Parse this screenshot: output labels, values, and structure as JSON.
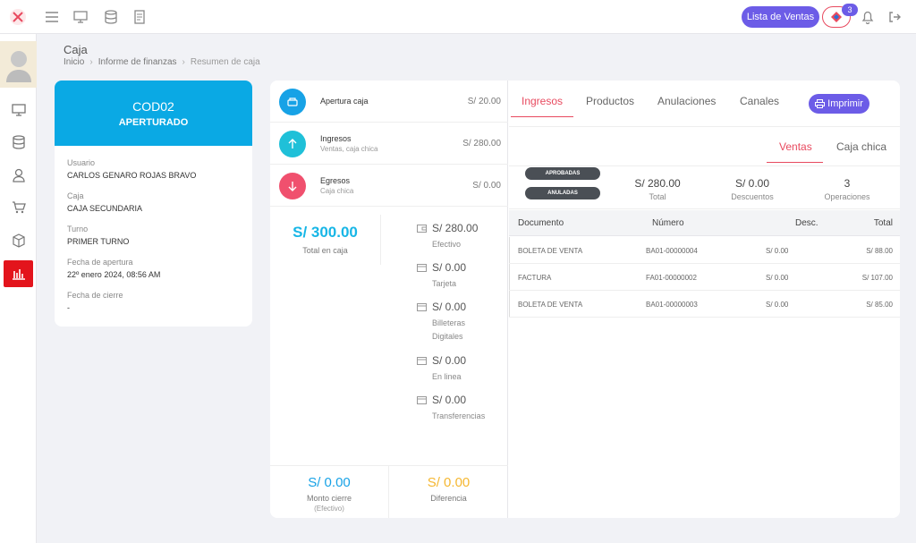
{
  "topbar": {
    "lista_label": "Lista de Ventas",
    "cart_count": "3"
  },
  "header": {
    "title": "Caja",
    "breadcrumb": [
      "Inicio",
      "Informe de finanzas",
      "Resumen de caja"
    ]
  },
  "caja_card": {
    "code": "COD02",
    "status": "APERTURADO",
    "fields": [
      {
        "label": "Usuario",
        "value": "CARLOS GENARO ROJAS BRAVO"
      },
      {
        "label": "Caja",
        "value": "CAJA SECUNDARIA"
      },
      {
        "label": "Turno",
        "value": "PRIMER TURNO"
      },
      {
        "label": "Fecha de apertura",
        "value": "22º enero 2024, 08:56 AM"
      },
      {
        "label": "Fecha de cierre",
        "value": "-"
      }
    ]
  },
  "movements": [
    {
      "title": "Apertura caja",
      "subtitle": "",
      "amount": "S/ 20.00",
      "color": "#17a2e6",
      "icon": "cash-register-icon"
    },
    {
      "title": "Ingresos",
      "subtitle": "Ventas, caja chica",
      "amount": "S/ 280.00",
      "color": "#1fc0d8",
      "icon": "arrow-up-icon"
    },
    {
      "title": "Egresos",
      "subtitle": "Caja chica",
      "amount": "S/ 0.00",
      "color": "#f0506e",
      "icon": "arrow-down-icon"
    }
  ],
  "total_caja": {
    "amount": "S/ 300.00",
    "label": "Total en caja"
  },
  "payment_methods": [
    {
      "amount": "S/ 280.00",
      "name": "Efectivo",
      "icon": "wallet-icon"
    },
    {
      "amount": "S/ 0.00",
      "name": "Tarjeta",
      "icon": "card-icon"
    },
    {
      "amount": "S/ 0.00",
      "name": "Billeteras Digitales",
      "icon": "card-icon"
    },
    {
      "amount": "S/ 0.00",
      "name": "En linea",
      "icon": "card-icon"
    },
    {
      "amount": "S/ 0.00",
      "name": "Transferencias",
      "icon": "card-icon"
    }
  ],
  "footer": {
    "monto_cierre": {
      "amount": "S/ 0.00",
      "label": "Monto cierre",
      "sub": "(Efectivo)",
      "color": "#17a2e6"
    },
    "diferencia": {
      "amount": "S/ 0.00",
      "label": "Diferencia",
      "color": "#f5b731"
    }
  },
  "tabs": [
    "Ingresos",
    "Productos",
    "Anulaciones",
    "Canales"
  ],
  "print_label": "Imprimir",
  "subtabs": [
    "Ventas",
    "Caja chica"
  ],
  "summary": {
    "pills": [
      "APROBADAS",
      "ANULADAS"
    ],
    "stats": [
      {
        "value": "S/ 280.00",
        "label": "Total"
      },
      {
        "value": "S/ 0.00",
        "label": "Descuentos"
      },
      {
        "value": "3",
        "label": "Operaciones"
      }
    ]
  },
  "table": {
    "headers": [
      "Documento",
      "Número",
      "Desc.",
      "Total"
    ],
    "rows": [
      [
        "BOLETA DE VENTA",
        "BA01-00000004",
        "S/ 0.00",
        "S/ 88.00"
      ],
      [
        "FACTURA",
        "FA01-00000002",
        "S/ 0.00",
        "S/ 107.00"
      ],
      [
        "BOLETA DE VENTA",
        "BA01-00000003",
        "S/ 0.00",
        "S/ 85.00"
      ]
    ]
  }
}
